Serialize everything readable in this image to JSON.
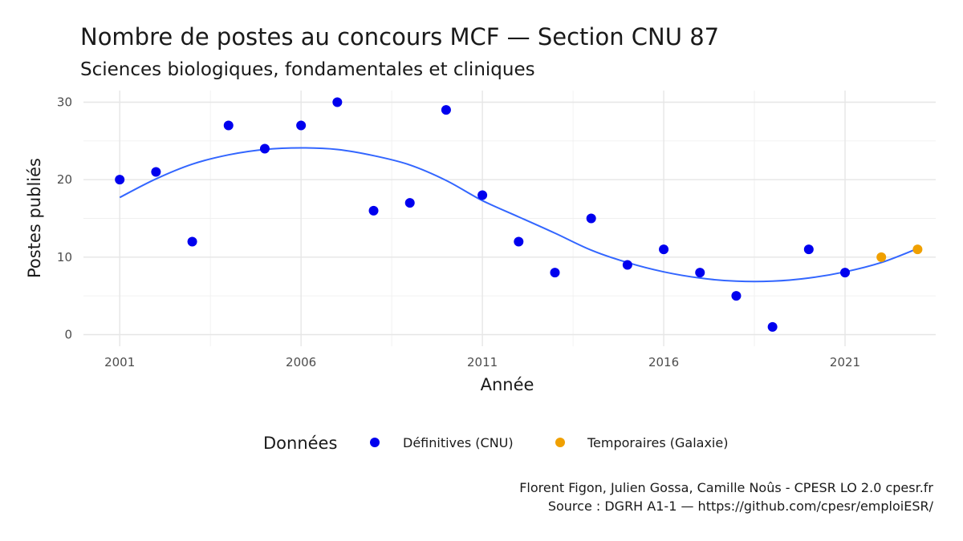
{
  "chart_data": {
    "type": "scatter",
    "title": "Nombre de postes au concours MCF  —  Section CNU 87",
    "subtitle": "Sciences biologiques, fondamentales et cliniques",
    "xlabel": "Année",
    "ylabel": "Postes publiés",
    "xlim": [
      2000.0,
      2023.5
    ],
    "ylim": [
      -1.5,
      31.5
    ],
    "xticks": [
      2001,
      2006,
      2011,
      2016,
      2021
    ],
    "xminor": [
      2003.5,
      2008.5,
      2013.5,
      2018.5
    ],
    "yticks": [
      0,
      10,
      20,
      30
    ],
    "yminor": [
      5,
      15,
      25
    ],
    "grid": true,
    "legend": {
      "title": "Données",
      "placement": "bottom",
      "entries": [
        {
          "label": "Définitives (CNU)",
          "color": "#0000ee"
        },
        {
          "label": "Temporaires (Galaxie)",
          "color": "#f0a000"
        }
      ]
    },
    "series": [
      {
        "name": "Définitives (CNU)",
        "color": "#0000ee",
        "x": [
          2001,
          2002,
          2003,
          2004,
          2005,
          2006,
          2007,
          2008,
          2009,
          2010,
          2011,
          2012,
          2013,
          2014,
          2015,
          2016,
          2017,
          2018,
          2019,
          2020,
          2021
        ],
        "y": [
          20,
          21,
          12,
          27,
          24,
          27,
          30,
          16,
          17,
          29,
          18,
          12,
          8,
          15,
          9,
          11,
          8,
          5,
          1,
          11,
          8
        ]
      },
      {
        "name": "Temporaires (Galaxie)",
        "color": "#f0a000",
        "x": [
          2022,
          2023
        ],
        "y": [
          10,
          11
        ]
      }
    ],
    "trend": {
      "color": "#3366ff",
      "x": [
        2001,
        2002,
        2003,
        2004,
        2005,
        2006,
        2007,
        2008,
        2009,
        2010,
        2011,
        2012,
        2013,
        2014,
        2015,
        2016,
        2017,
        2018,
        2019,
        2020,
        2021,
        2022,
        2023
      ],
      "y": [
        17.7,
        20.1,
        22.0,
        23.2,
        23.9,
        24.1,
        23.9,
        23.1,
        21.9,
        19.9,
        17.3,
        15.2,
        13.1,
        10.9,
        9.3,
        8.1,
        7.3,
        6.9,
        6.9,
        7.3,
        8.1,
        9.3,
        11.1
      ]
    },
    "caption": [
      "Florent Figon, Julien Gossa, Camille Noûs - CPESR LO 2.0 cpesr.fr",
      "Source : DGRH A1-1 — https://github.com/cpesr/emploiESR/"
    ]
  }
}
